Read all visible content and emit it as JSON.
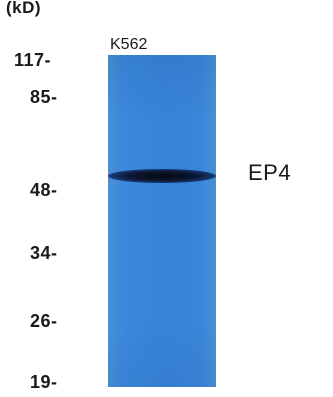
{
  "unit_label": "(kD)",
  "cell_line": "K562",
  "target_label": "EP4",
  "markers": [
    "117-",
    "85-",
    "48-",
    "34-",
    "26-",
    "19-"
  ],
  "colors": {
    "lane": "#3883d8",
    "band": "#0b1730"
  }
}
